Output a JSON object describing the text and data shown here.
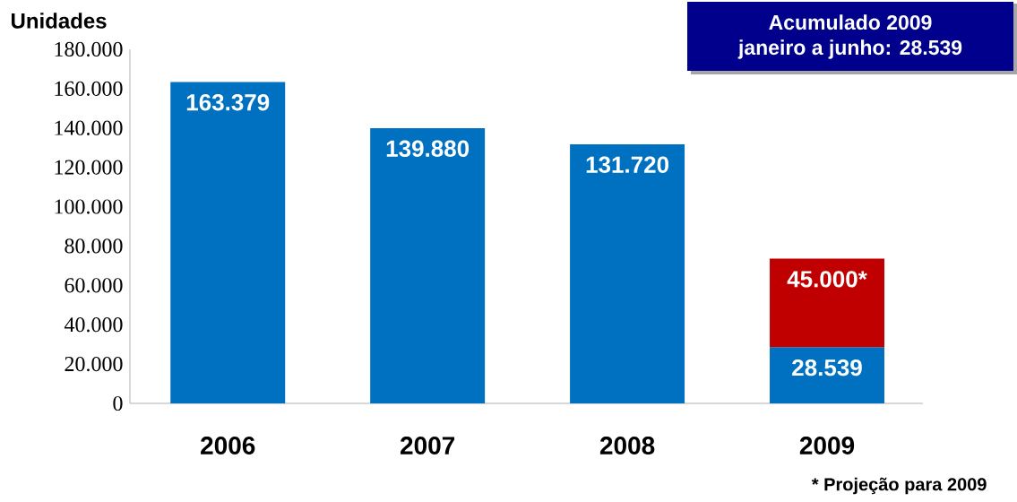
{
  "chart_data": {
    "type": "bar",
    "stacked": true,
    "ylabel": "Unidades",
    "categories": [
      "2006",
      "2007",
      "2008",
      "2009"
    ],
    "series": [
      {
        "color": "#0070c0",
        "values": [
          163379,
          139880,
          131720,
          28539
        ],
        "value_labels": [
          "163.379",
          "139.880",
          "131.720",
          "28.539"
        ]
      },
      {
        "color": "#c00000",
        "values": [
          null,
          null,
          null,
          45000
        ],
        "value_labels": [
          null,
          null,
          null,
          "45.000*"
        ]
      }
    ],
    "ylim": [
      0,
      180000
    ],
    "yticks": [
      {
        "value": 0,
        "label": "0"
      },
      {
        "value": 20000,
        "label": "20.000"
      },
      {
        "value": 40000,
        "label": "40.000"
      },
      {
        "value": 60000,
        "label": "60.000"
      },
      {
        "value": 80000,
        "label": "80.000"
      },
      {
        "value": 100000,
        "label": "100.000"
      },
      {
        "value": 120000,
        "label": "120.000"
      },
      {
        "value": 140000,
        "label": "140.000"
      },
      {
        "value": 160000,
        "label": "160.000"
      },
      {
        "value": 180000,
        "label": "180.000"
      }
    ],
    "annotations": [
      "Acumulado 2009",
      "janeiro a junho: 28.539",
      "* Projeção para 2009"
    ],
    "grid": false
  }
}
